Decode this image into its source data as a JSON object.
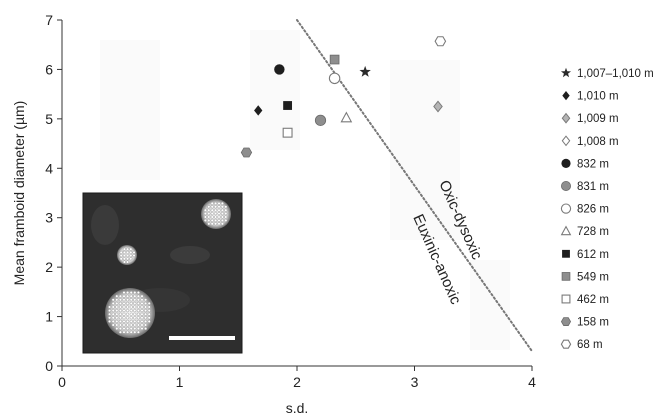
{
  "chart_data": {
    "type": "scatter",
    "xlabel": "s.d.",
    "ylabel": "Mean framboid diameter (µm)",
    "xlim": [
      0,
      4
    ],
    "ylim": [
      0,
      7
    ],
    "x_ticks": [
      "0",
      "1",
      "2",
      "3",
      "4"
    ],
    "y_ticks": [
      "0",
      "1",
      "2",
      "3",
      "4",
      "5",
      "6",
      "7"
    ],
    "grid": false,
    "legend_position": "right",
    "boundary_line": {
      "from": [
        2.0,
        7.0
      ],
      "to": [
        4.0,
        0.3
      ],
      "style": "dotted"
    },
    "annotations": [
      {
        "text": "Oxic-dysoxic",
        "side": "upper"
      },
      {
        "text": "Euxinic-anoxic",
        "side": "lower"
      }
    ],
    "inset": {
      "content": "photomicrograph of pyrite framboids with scale bar"
    },
    "series": [
      {
        "name": "1,007–1,010 m",
        "marker": "star",
        "color": "#333333",
        "x": [
          2.58
        ],
        "y": [
          5.95
        ]
      },
      {
        "name": "1,010 m",
        "marker": "diamond-filled",
        "color": "#222222",
        "x": [
          1.67
        ],
        "y": [
          5.17
        ]
      },
      {
        "name": "1,009 m",
        "marker": "diamond-gray",
        "color": "#999999",
        "x": [
          3.2
        ],
        "y": [
          5.25
        ]
      },
      {
        "name": "1,008 m",
        "marker": "diamond-open",
        "color": "#777777",
        "x": [],
        "y": []
      },
      {
        "name": "832 m",
        "marker": "circle-black",
        "color": "#222222",
        "x": [
          1.85
        ],
        "y": [
          6.0
        ]
      },
      {
        "name": "831 m",
        "marker": "circle-gray",
        "color": "#888888",
        "x": [
          2.2
        ],
        "y": [
          4.97
        ]
      },
      {
        "name": "826 m",
        "marker": "circle-open",
        "color": "#777777",
        "x": [
          2.32
        ],
        "y": [
          5.82
        ]
      },
      {
        "name": "728 m",
        "marker": "triangle-open",
        "color": "#777777",
        "x": [
          2.42
        ],
        "y": [
          5.02
        ]
      },
      {
        "name": "612 m",
        "marker": "square-black",
        "color": "#222222",
        "x": [
          1.92
        ],
        "y": [
          5.27
        ]
      },
      {
        "name": "549 m",
        "marker": "square-gray",
        "color": "#888888",
        "x": [
          2.32
        ],
        "y": [
          6.2
        ]
      },
      {
        "name": "462 m",
        "marker": "square-open",
        "color": "#777777",
        "x": [
          1.92
        ],
        "y": [
          4.72
        ]
      },
      {
        "name": "158 m",
        "marker": "hexagon-gray",
        "color": "#888888",
        "x": [
          1.57
        ],
        "y": [
          4.32
        ]
      },
      {
        "name": "68 m",
        "marker": "hexagon-open",
        "color": "#777777",
        "x": [
          3.22
        ],
        "y": [
          6.57
        ]
      }
    ]
  }
}
